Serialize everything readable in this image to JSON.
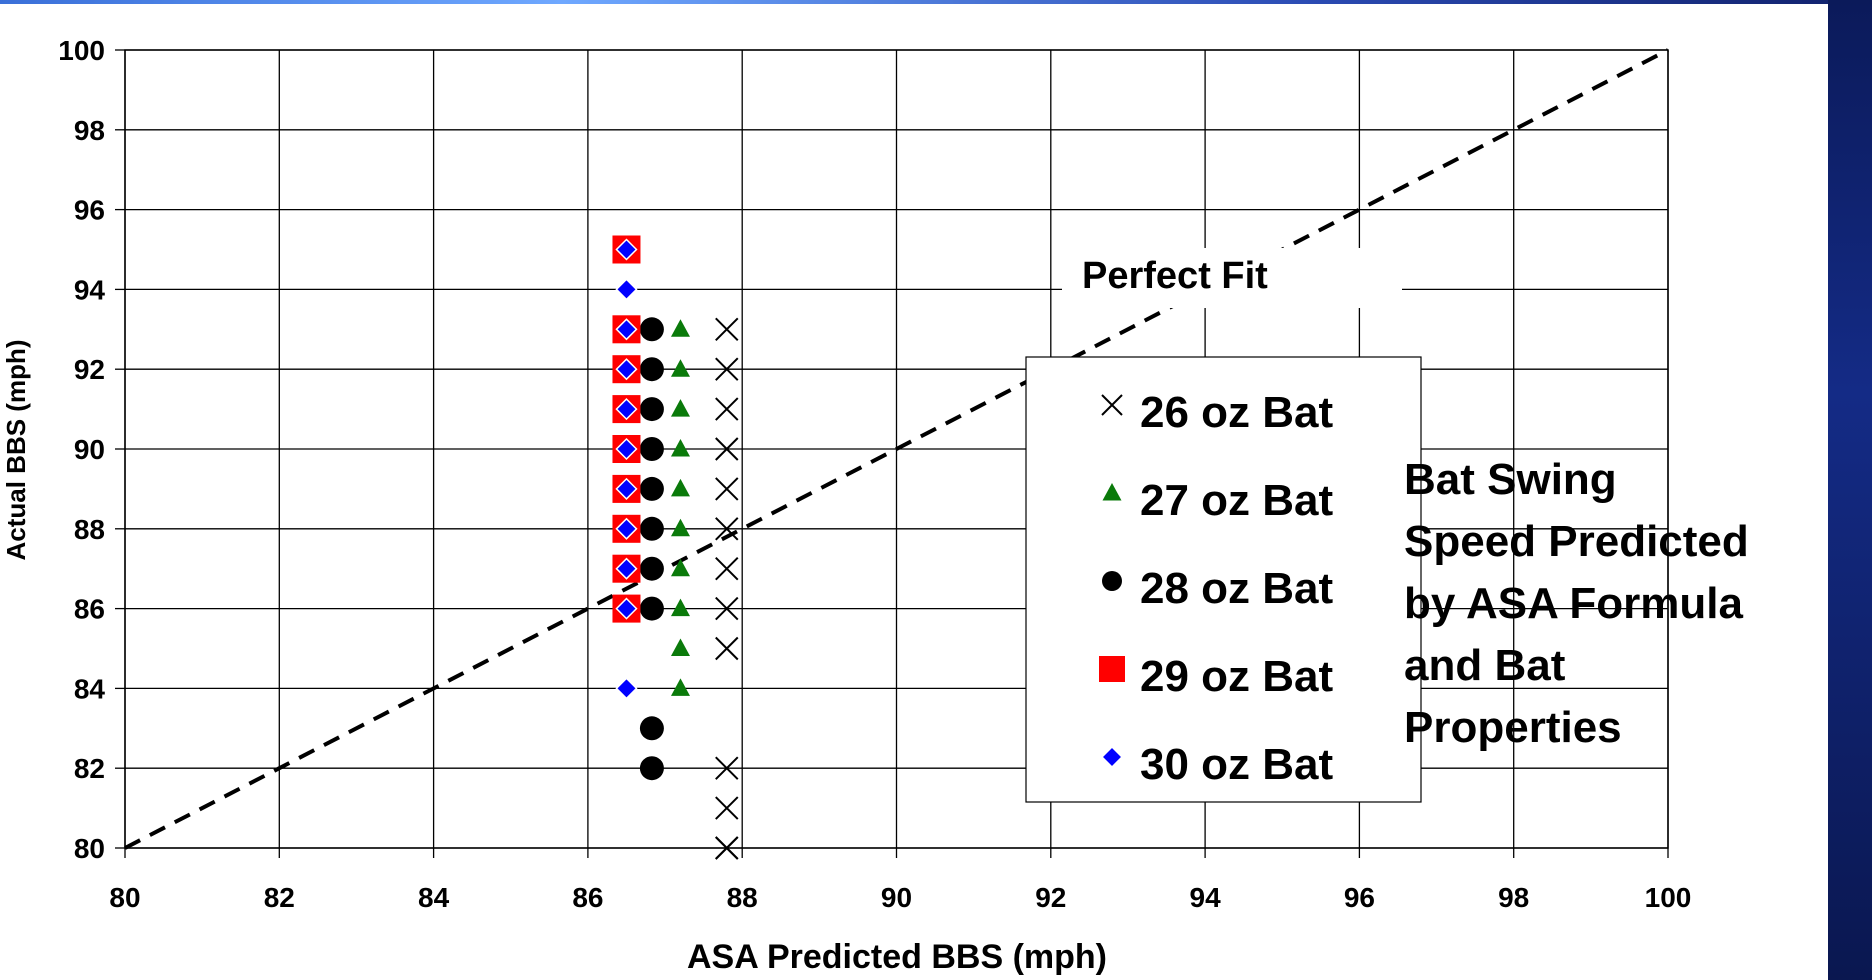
{
  "chart_data": {
    "type": "scatter",
    "xlabel": "ASA Predicted BBS (mph)",
    "ylabel": "Actual BBS (mph)",
    "xlim": [
      80,
      100
    ],
    "ylim": [
      80,
      100
    ],
    "x_ticks": [
      "80",
      "82",
      "84",
      "86",
      "88",
      "90",
      "92",
      "94",
      "96",
      "98",
      "100"
    ],
    "y_ticks": [
      "80",
      "82",
      "84",
      "86",
      "88",
      "90",
      "92",
      "94",
      "96",
      "98",
      "100"
    ],
    "grid": true,
    "legend_position": "right",
    "reference_line": {
      "label": "Perfect Fit",
      "x": [
        80,
        100
      ],
      "y": [
        80,
        100
      ],
      "style": "dashed"
    },
    "side_note": [
      "Bat Swing",
      "Speed Predicted",
      "by ASA Formula",
      "and Bat",
      "Properties"
    ],
    "series": [
      {
        "name": "26 oz Bat",
        "marker": "x",
        "color": "#000000",
        "x": [
          87.8,
          87.8,
          87.8,
          87.8,
          87.8,
          87.8,
          87.8,
          87.8,
          87.8,
          87.8,
          87.8,
          87.8,
          87.8
        ],
        "y": [
          93,
          92,
          91,
          90,
          89,
          88,
          87,
          86,
          85,
          82,
          81,
          80,
          80
        ]
      },
      {
        "name": "27 oz Bat",
        "marker": "triangle",
        "color": "#0a7a0a",
        "x": [
          87.2,
          87.2,
          87.2,
          87.2,
          87.2,
          87.2,
          87.2,
          87.2,
          87.2,
          87.2
        ],
        "y": [
          93,
          92,
          91,
          90,
          89,
          88,
          87,
          86,
          85,
          84
        ]
      },
      {
        "name": "28 oz Bat",
        "marker": "circle",
        "color": "#000000",
        "x": [
          86.7,
          86.7,
          86.7,
          86.7,
          86.7,
          86.7,
          86.7,
          86.7,
          86.7,
          86.7
        ],
        "y": [
          93,
          92,
          91,
          90,
          89,
          88,
          87,
          86,
          83,
          82
        ]
      },
      {
        "name": "29 oz Bat",
        "marker": "square",
        "color": "#ff0000",
        "x": [
          86.5,
          86.5,
          86.5,
          86.5,
          86.5,
          86.5,
          86.5,
          86.5,
          86.5
        ],
        "y": [
          95,
          93,
          92,
          91,
          90,
          89,
          88,
          87,
          86
        ]
      },
      {
        "name": "30 oz Bat",
        "marker": "diamond",
        "color": "#0000ff",
        "x": [
          86.5,
          86.5,
          86.5,
          86.5,
          86.5,
          86.5,
          86.5,
          86.5,
          86.5,
          86.5,
          86.5
        ],
        "y": [
          95,
          94,
          93,
          92,
          91,
          90,
          89,
          88,
          87,
          86,
          84
        ]
      }
    ]
  }
}
